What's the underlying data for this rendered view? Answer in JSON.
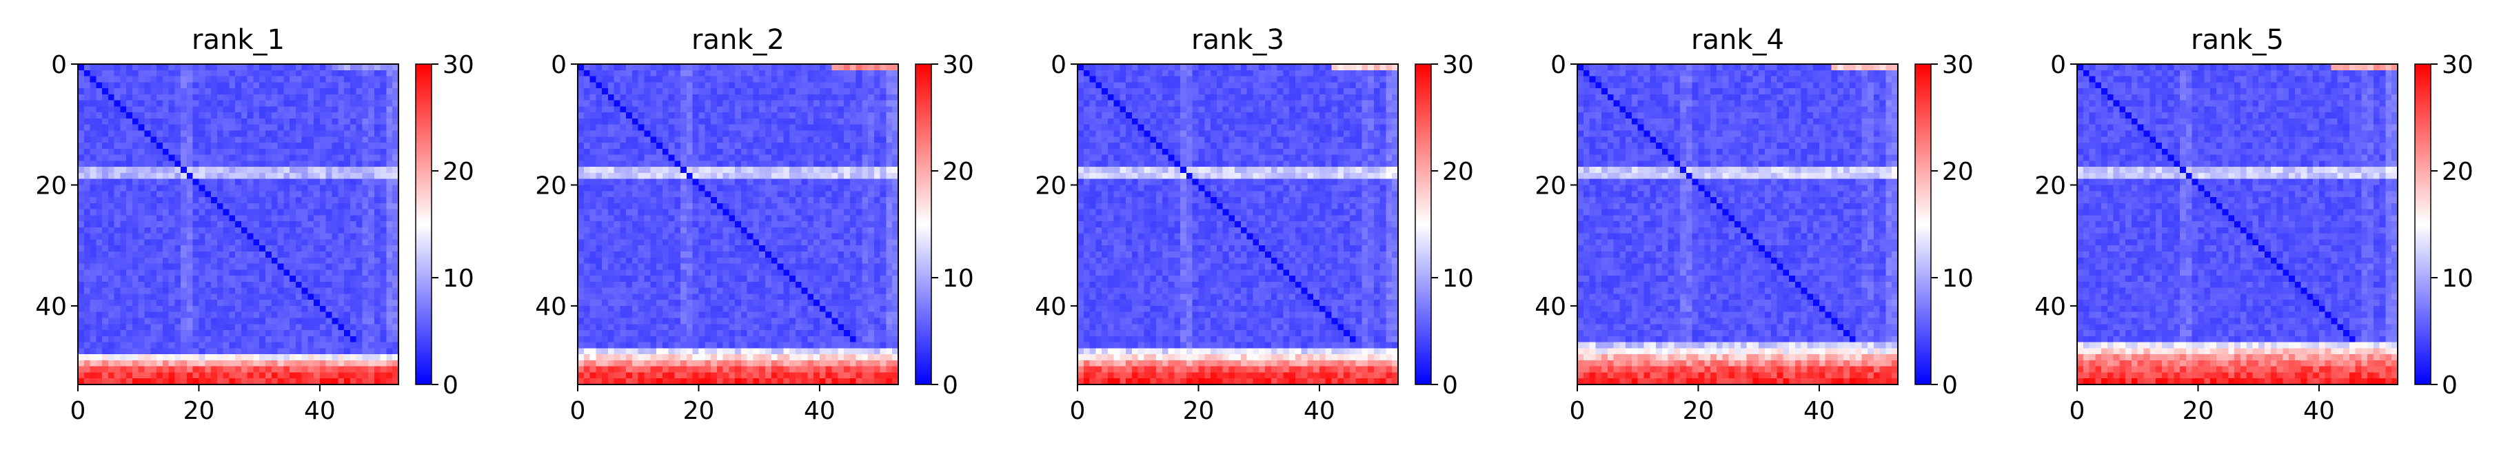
{
  "figure": {
    "colormap": {
      "name": "bwr",
      "low": "#0000ff",
      "mid": "#ffffff",
      "high": "#ff0000"
    },
    "text_color": "#000000"
  },
  "chart_data": [
    {
      "type": "heatmap",
      "title": "rank_1",
      "n": 53,
      "xlim": [
        0,
        53
      ],
      "ylim": [
        53,
        0
      ],
      "x_ticks": [
        0,
        20,
        40
      ],
      "y_ticks": [
        0,
        20,
        40
      ],
      "clim": [
        0,
        30
      ],
      "colorbar_ticks": [
        0,
        10,
        20,
        30
      ],
      "grid": false,
      "pattern": {
        "base": 5.0,
        "band_row": 17,
        "band_value": 11.0,
        "bottom_rows": [
          [
            48,
            15.0
          ],
          [
            49,
            20.0
          ],
          [
            50,
            25.0
          ],
          [
            51,
            26.5
          ],
          [
            52,
            27.5
          ]
        ],
        "top_right_value": 9.0,
        "diagonal": 0.5,
        "band_center_spot": 12.0
      }
    },
    {
      "type": "heatmap",
      "title": "rank_2",
      "n": 53,
      "xlim": [
        0,
        53
      ],
      "ylim": [
        53,
        0
      ],
      "x_ticks": [
        0,
        20,
        40
      ],
      "y_ticks": [
        0,
        20,
        40
      ],
      "clim": [
        0,
        30
      ],
      "colorbar_ticks": [
        0,
        10,
        20,
        30
      ],
      "grid": false,
      "pattern": {
        "base": 5.0,
        "band_row": 17,
        "band_value": 12.0,
        "bottom_rows": [
          [
            47,
            13.0
          ],
          [
            48,
            17.0
          ],
          [
            49,
            21.0
          ],
          [
            50,
            25.0
          ],
          [
            51,
            26.5
          ],
          [
            52,
            27.5
          ]
        ],
        "top_right_value": 22.0,
        "diagonal": 0.5,
        "band_center_spot": 17.0
      }
    },
    {
      "type": "heatmap",
      "title": "rank_3",
      "n": 53,
      "xlim": [
        0,
        53
      ],
      "ylim": [
        53,
        0
      ],
      "x_ticks": [
        0,
        20,
        40
      ],
      "y_ticks": [
        0,
        20,
        40
      ],
      "clim": [
        0,
        30
      ],
      "colorbar_ticks": [
        0,
        10,
        20,
        30
      ],
      "grid": false,
      "pattern": {
        "base": 5.0,
        "band_row": 17,
        "band_value": 12.0,
        "bottom_rows": [
          [
            47,
            13.0
          ],
          [
            48,
            17.0
          ],
          [
            49,
            21.0
          ],
          [
            50,
            25.0
          ],
          [
            51,
            26.5
          ],
          [
            52,
            27.5
          ]
        ],
        "top_right_value": 18.0,
        "diagonal": 0.5,
        "band_center_spot": 17.0
      }
    },
    {
      "type": "heatmap",
      "title": "rank_4",
      "n": 53,
      "xlim": [
        0,
        53
      ],
      "ylim": [
        53,
        0
      ],
      "x_ticks": [
        0,
        20,
        40
      ],
      "y_ticks": [
        0,
        20,
        40
      ],
      "clim": [
        0,
        30
      ],
      "colorbar_ticks": [
        0,
        10,
        20,
        30
      ],
      "grid": false,
      "pattern": {
        "base": 5.0,
        "band_row": 17,
        "band_value": 12.0,
        "bottom_rows": [
          [
            46,
            12.0
          ],
          [
            47,
            15.0
          ],
          [
            48,
            19.0
          ],
          [
            49,
            22.0
          ],
          [
            50,
            25.0
          ],
          [
            51,
            26.5
          ],
          [
            52,
            27.5
          ]
        ],
        "top_right_value": 18.0,
        "diagonal": 0.5,
        "band_center_spot": 17.0
      }
    },
    {
      "type": "heatmap",
      "title": "rank_5",
      "n": 53,
      "xlim": [
        0,
        53
      ],
      "ylim": [
        53,
        0
      ],
      "x_ticks": [
        0,
        20,
        40
      ],
      "y_ticks": [
        0,
        20,
        40
      ],
      "clim": [
        0,
        30
      ],
      "colorbar_ticks": [
        0,
        10,
        20,
        30
      ],
      "grid": false,
      "pattern": {
        "base": 5.0,
        "band_row": 17,
        "band_value": 12.0,
        "bottom_rows": [
          [
            46,
            14.0
          ],
          [
            47,
            18.0
          ],
          [
            48,
            21.0
          ],
          [
            49,
            23.0
          ],
          [
            50,
            25.0
          ],
          [
            51,
            26.5
          ],
          [
            52,
            27.5
          ]
        ],
        "top_right_value": 20.0,
        "diagonal": 0.5,
        "band_center_spot": 15.0
      }
    }
  ]
}
